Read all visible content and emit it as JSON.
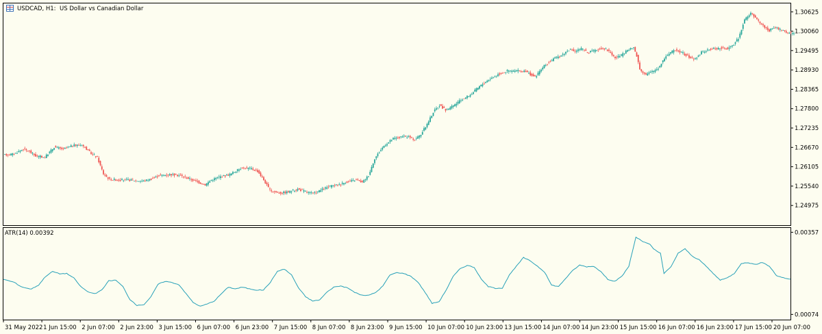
{
  "colors": {
    "background": "#fdfdf0",
    "frame": "#000000",
    "bull": "#26a69a",
    "bear": "#ef5350",
    "atr_line": "#26a0b8"
  },
  "header": {
    "icon": "chart-window-icon",
    "symbol": "USDCAD, H1:",
    "description": "US Dollar vs Canadian Dollar"
  },
  "atr_label": "ATR(14) 0.00392",
  "chart_data": [
    {
      "type": "candlestick",
      "title": "USDCAD, H1:  US Dollar vs Canadian Dollar",
      "ylim": [
        1.244,
        1.3087
      ],
      "price_ticks": [
        "1.30625",
        "1.30060",
        "1.29495",
        "1.28930",
        "1.28365",
        "1.27800",
        "1.27235",
        "1.26670",
        "1.26105",
        "1.25540",
        "1.24975"
      ],
      "anchors": [
        [
          0,
          1.2645
        ],
        [
          6,
          1.2648
        ],
        [
          12,
          1.2662
        ],
        [
          16,
          1.2655
        ],
        [
          20,
          1.2642
        ],
        [
          26,
          1.2638
        ],
        [
          32,
          1.2668
        ],
        [
          38,
          1.2662
        ],
        [
          44,
          1.2672
        ],
        [
          50,
          1.2675
        ],
        [
          56,
          1.265
        ],
        [
          60,
          1.2638
        ],
        [
          64,
          1.259
        ],
        [
          68,
          1.2574
        ],
        [
          74,
          1.2572
        ],
        [
          80,
          1.2572
        ],
        [
          86,
          1.257
        ],
        [
          90,
          1.2569
        ],
        [
          95,
          1.2575
        ],
        [
          100,
          1.2585
        ],
        [
          108,
          1.2588
        ],
        [
          114,
          1.2585
        ],
        [
          120,
          1.2575
        ],
        [
          126,
          1.2565
        ],
        [
          130,
          1.2558
        ],
        [
          134,
          1.2572
        ],
        [
          140,
          1.2582
        ],
        [
          146,
          1.2588
        ],
        [
          150,
          1.2598
        ],
        [
          154,
          1.2608
        ],
        [
          160,
          1.2605
        ],
        [
          164,
          1.2598
        ],
        [
          168,
          1.2572
        ],
        [
          172,
          1.2542
        ],
        [
          178,
          1.2534
        ],
        [
          184,
          1.2537
        ],
        [
          190,
          1.2545
        ],
        [
          196,
          1.2537
        ],
        [
          200,
          1.2532
        ],
        [
          204,
          1.254
        ],
        [
          210,
          1.2552
        ],
        [
          216,
          1.2558
        ],
        [
          222,
          1.2566
        ],
        [
          228,
          1.2572
        ],
        [
          232,
          1.2565
        ],
        [
          236,
          1.2585
        ],
        [
          240,
          1.2635
        ],
        [
          246,
          1.2672
        ],
        [
          252,
          1.2692
        ],
        [
          258,
          1.2698
        ],
        [
          262,
          1.2698
        ],
        [
          266,
          1.269
        ],
        [
          270,
          1.2705
        ],
        [
          274,
          1.2735
        ],
        [
          278,
          1.277
        ],
        [
          282,
          1.279
        ],
        [
          286,
          1.2776
        ],
        [
          290,
          1.2785
        ],
        [
          296,
          1.2805
        ],
        [
          302,
          1.282
        ],
        [
          308,
          1.2845
        ],
        [
          314,
          1.2865
        ],
        [
          320,
          1.288
        ],
        [
          326,
          1.289
        ],
        [
          332,
          1.289
        ],
        [
          338,
          1.2888
        ],
        [
          344,
          1.2872
        ],
        [
          350,
          1.2905
        ],
        [
          356,
          1.2925
        ],
        [
          362,
          1.2938
        ],
        [
          366,
          1.2952
        ],
        [
          370,
          1.2948
        ],
        [
          374,
          1.2955
        ],
        [
          378,
          1.2945
        ],
        [
          382,
          1.2948
        ],
        [
          388,
          1.2958
        ],
        [
          392,
          1.2948
        ],
        [
          396,
          1.2928
        ],
        [
          400,
          1.2935
        ],
        [
          404,
          1.295
        ],
        [
          408,
          1.2958
        ],
        [
          410,
          1.2935
        ],
        [
          412,
          1.2895
        ],
        [
          416,
          1.288
        ],
        [
          420,
          1.2888
        ],
        [
          424,
          1.2898
        ],
        [
          428,
          1.2928
        ],
        [
          432,
          1.2945
        ],
        [
          436,
          1.2952
        ],
        [
          440,
          1.2942
        ],
        [
          444,
          1.293
        ],
        [
          448,
          1.2925
        ],
        [
          452,
          1.2945
        ],
        [
          456,
          1.295
        ],
        [
          460,
          1.2956
        ],
        [
          464,
          1.2956
        ],
        [
          468,
          1.2955
        ],
        [
          472,
          1.2962
        ],
        [
          476,
          1.2985
        ],
        [
          480,
          1.304
        ],
        [
          484,
          1.3058
        ],
        [
          488,
          1.304
        ],
        [
          492,
          1.3022
        ],
        [
          496,
          1.3008
        ],
        [
          500,
          1.3018
        ],
        [
          504,
          1.3008
        ],
        [
          508,
          1.3002
        ],
        [
          512,
          1.2998
        ]
      ],
      "x_ticks": [
        "31 May 2022",
        "1 Jun 15:00",
        "2 Jun 07:00",
        "2 Jun 23:00",
        "3 Jun 15:00",
        "6 Jun 07:00",
        "6 Jun 23:00",
        "7 Jun 15:00",
        "8 Jun 07:00",
        "8 Jun 23:00",
        "9 Jun 15:00",
        "10 Jun 07:00",
        "10 Jun 23:00",
        "13 Jun 15:00",
        "14 Jun 07:00",
        "14 Jun 23:00",
        "15 Jun 15:00",
        "16 Jun 07:00",
        "16 Jun 23:00",
        "17 Jun 15:00",
        "20 Jun 07:00"
      ]
    },
    {
      "type": "line",
      "title": "ATR(14) 0.00392",
      "series": [
        {
          "name": "ATR(14)",
          "values_desc": "see anchors"
        }
      ],
      "ylim": [
        0.00056,
        0.00372
      ],
      "y_ticks": [
        "0.00357",
        "0.00074"
      ],
      "anchors": [
        [
          0,
          0.00195
        ],
        [
          6,
          0.00185
        ],
        [
          10,
          0.0017
        ],
        [
          14,
          0.00163
        ],
        [
          16,
          0.00162
        ],
        [
          20,
          0.00175
        ],
        [
          24,
          0.00205
        ],
        [
          28,
          0.00222
        ],
        [
          32,
          0.00214
        ],
        [
          36,
          0.00215
        ],
        [
          40,
          0.002
        ],
        [
          44,
          0.0017
        ],
        [
          48,
          0.00152
        ],
        [
          52,
          0.00145
        ],
        [
          56,
          0.00158
        ],
        [
          60,
          0.0019
        ],
        [
          64,
          0.00192
        ],
        [
          68,
          0.0017
        ],
        [
          72,
          0.00125
        ],
        [
          76,
          0.00105
        ],
        [
          80,
          0.00108
        ],
        [
          84,
          0.00135
        ],
        [
          88,
          0.00178
        ],
        [
          92,
          0.00188
        ],
        [
          96,
          0.00184
        ],
        [
          100,
          0.00176
        ],
        [
          104,
          0.00145
        ],
        [
          108,
          0.00115
        ],
        [
          112,
          0.00102
        ],
        [
          116,
          0.0011
        ],
        [
          120,
          0.0012
        ],
        [
          124,
          0.00145
        ],
        [
          128,
          0.00168
        ],
        [
          132,
          0.00162
        ],
        [
          136,
          0.00168
        ],
        [
          140,
          0.00162
        ],
        [
          144,
          0.00158
        ],
        [
          148,
          0.00158
        ],
        [
          152,
          0.00185
        ],
        [
          156,
          0.00223
        ],
        [
          160,
          0.0023
        ],
        [
          164,
          0.0021
        ],
        [
          168,
          0.00165
        ],
        [
          172,
          0.00135
        ],
        [
          176,
          0.0012
        ],
        [
          180,
          0.00124
        ],
        [
          184,
          0.0015
        ],
        [
          188,
          0.00168
        ],
        [
          192,
          0.00172
        ],
        [
          196,
          0.00165
        ],
        [
          200,
          0.0015
        ],
        [
          204,
          0.0014
        ],
        [
          208,
          0.0014
        ],
        [
          212,
          0.0015
        ],
        [
          216,
          0.00172
        ],
        [
          220,
          0.0021
        ],
        [
          224,
          0.00218
        ],
        [
          228,
          0.00215
        ],
        [
          232,
          0.00205
        ],
        [
          236,
          0.00185
        ],
        [
          240,
          0.0015
        ],
        [
          244,
          0.00112
        ],
        [
          248,
          0.00118
        ],
        [
          252,
          0.00158
        ],
        [
          256,
          0.00205
        ],
        [
          260,
          0.00232
        ],
        [
          264,
          0.00243
        ],
        [
          268,
          0.00236
        ],
        [
          272,
          0.00195
        ],
        [
          276,
          0.0017
        ],
        [
          280,
          0.00164
        ],
        [
          284,
          0.00165
        ],
        [
          288,
          0.0021
        ],
        [
          292,
          0.0024
        ],
        [
          296,
          0.0027
        ],
        [
          300,
          0.00258
        ],
        [
          304,
          0.0024
        ],
        [
          308,
          0.0022
        ],
        [
          312,
          0.00175
        ],
        [
          316,
          0.0017
        ],
        [
          320,
          0.00198
        ],
        [
          324,
          0.00225
        ],
        [
          328,
          0.00244
        ],
        [
          332,
          0.00238
        ],
        [
          336,
          0.0024
        ],
        [
          340,
          0.00222
        ],
        [
          344,
          0.00195
        ],
        [
          348,
          0.00188
        ],
        [
          352,
          0.00205
        ],
        [
          356,
          0.0024
        ],
        [
          360,
          0.0034
        ],
        [
          364,
          0.00325
        ],
        [
          368,
          0.00315
        ],
        [
          370,
          0.003
        ],
        [
          374,
          0.00284
        ],
        [
          376,
          0.00215
        ],
        [
          380,
          0.00238
        ],
        [
          384,
          0.00285
        ],
        [
          388,
          0.003
        ],
        [
          392,
          0.00275
        ],
        [
          396,
          0.00262
        ],
        [
          400,
          0.0024
        ],
        [
          404,
          0.00215
        ],
        [
          408,
          0.00192
        ],
        [
          412,
          0.002
        ],
        [
          416,
          0.00215
        ],
        [
          420,
          0.0025
        ],
        [
          424,
          0.00252
        ],
        [
          428,
          0.00246
        ],
        [
          432,
          0.00253
        ],
        [
          436,
          0.0024
        ],
        [
          440,
          0.00208
        ],
        [
          444,
          0.002
        ],
        [
          448,
          0.00195
        ]
      ]
    }
  ]
}
